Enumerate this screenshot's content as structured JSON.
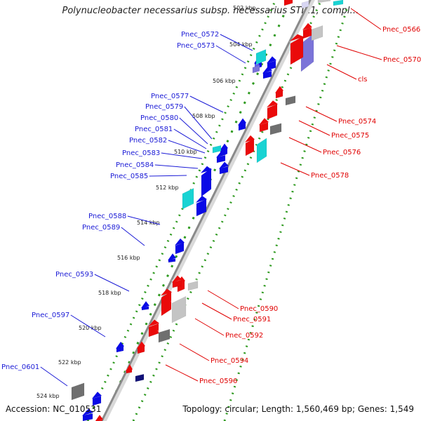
{
  "title": "Polynucleobacter necessarius subsp. necessarius STIR1, compl…",
  "footer": {
    "accession": "Accession: NC_010531",
    "summary": "Topology: circular; Length: 1,560,469 bp; Genes: 1,549"
  },
  "ticks": [
    "502 kbp",
    "504 kbp",
    "506 kbp",
    "508 kbp",
    "510 kbp",
    "512 kbp",
    "514 kbp",
    "516 kbp",
    "518 kbp",
    "520 kbp",
    "522 kbp",
    "524 kbp"
  ],
  "genes_left": [
    "Pnec_0572",
    "Pnec_0573",
    "Pnec_0577",
    "Pnec_0579",
    "Pnec_0580",
    "Pnec_0581",
    "Pnec_0582",
    "Pnec_0583",
    "Pnec_0584",
    "Pnec_0585",
    "Pnec_0588",
    "Pnec_0589",
    "Pnec_0593",
    "Pnec_0597",
    "Pnec_0601"
  ],
  "genes_right": [
    "Pnec_0566",
    "Pnec_0570",
    "cls",
    "Pnec_0574",
    "Pnec_0575",
    "Pnec_0576",
    "Pnec_0578",
    "Pnec_0590",
    "Pnec_0591",
    "Pnec_0592",
    "Pnec_0594",
    "Pnec_0596"
  ],
  "colors": {
    "left_label": "#1b1bd6",
    "right_label": "#e00000",
    "gene_blue": "#0a0ae6",
    "gene_red": "#ea0a0a",
    "gene_cyan": "#19d3d3",
    "gene_gray_dark": "#6f6f6f",
    "gene_gray_light": "#c4c4c4",
    "gene_navy": "#101078",
    "gene_lavender": "#7b74d8",
    "backbone": "#8a8a8a",
    "dotted_track": "#2e9a1f"
  }
}
